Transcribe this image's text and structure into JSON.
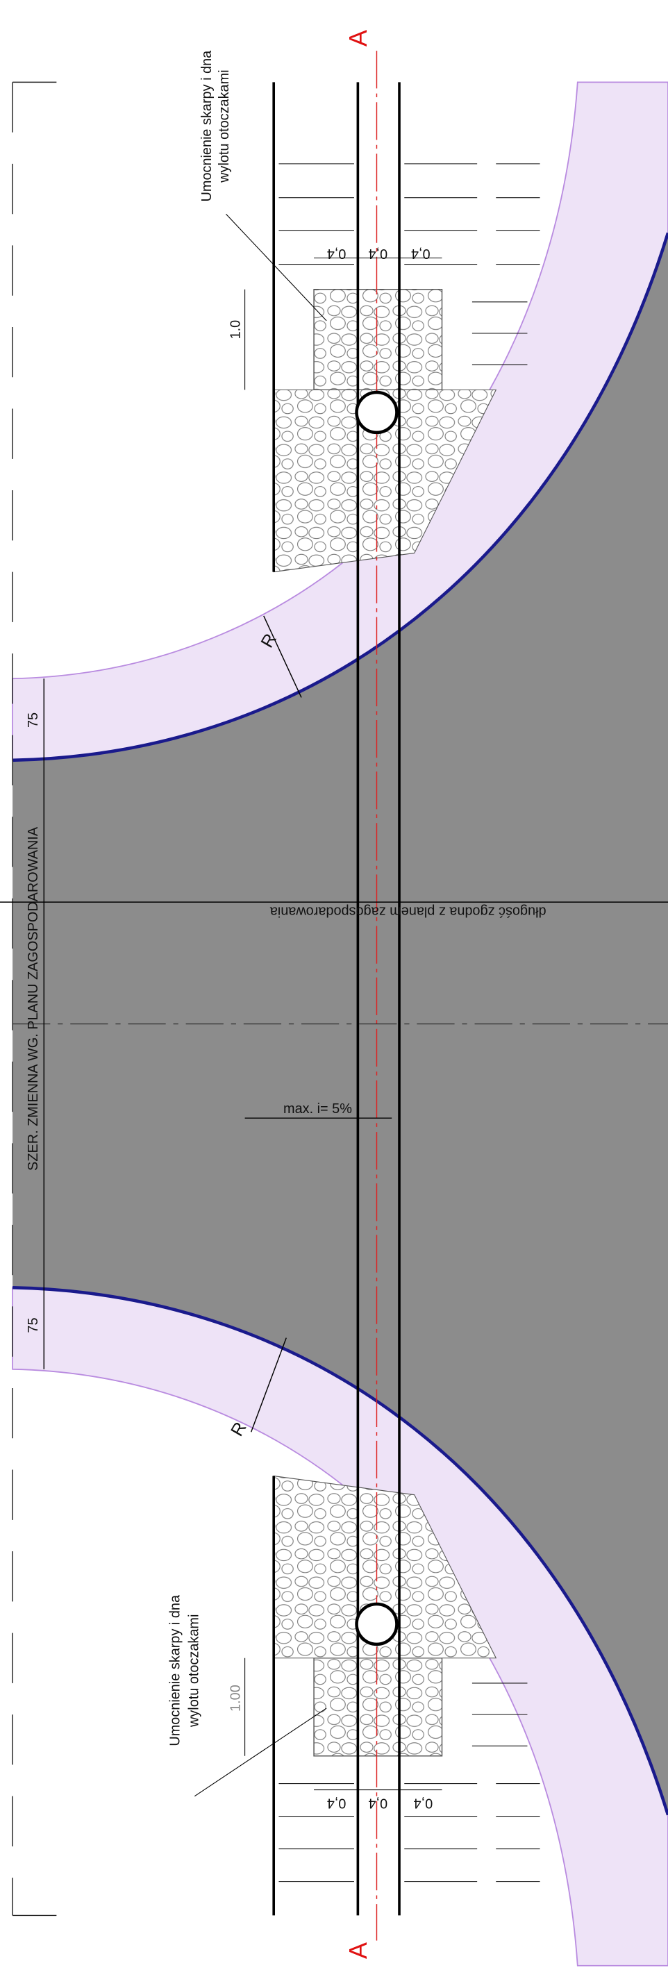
{
  "section": {
    "top": "A",
    "bottom": "A"
  },
  "top_detail": {
    "note": [
      "Umocnienie skarpy i dna",
      "wylotu otoczakami"
    ],
    "widths": [
      "0,4",
      "0,4",
      "0,4"
    ],
    "length": "1.0"
  },
  "bottom_detail": {
    "note": [
      "Umocnienie skarpy i dna",
      "wylotu otoczakami"
    ],
    "widths": [
      "0,4",
      "0,4",
      "0,4"
    ],
    "length": "1.00"
  },
  "radius_labels": [
    "R",
    "R"
  ],
  "band_widths": [
    "75",
    "75"
  ],
  "width_label": "SZER. ZMIENNA WG. PLANU ZAGOSPODAROWANIA",
  "length_label": "długość zgodna z planem zagospodarowania",
  "slope_label": "max. i= 5%"
}
